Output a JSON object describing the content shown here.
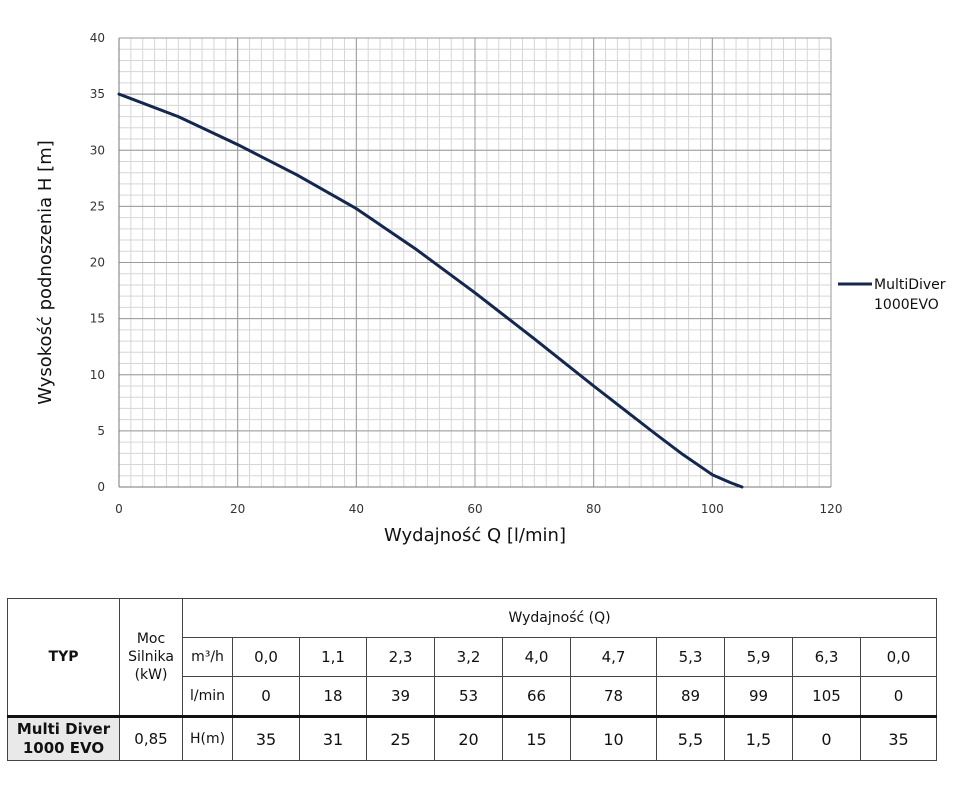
{
  "chart_data": {
    "type": "line",
    "xlabel": "Wydajność Q [l/min]",
    "ylabel": "Wysokość podnoszenia H [m]",
    "xlim": [
      0,
      120
    ],
    "ylim": [
      0,
      40
    ],
    "x_ticks": [
      0,
      20,
      40,
      60,
      80,
      100,
      120
    ],
    "y_ticks": [
      0,
      5,
      10,
      15,
      20,
      25,
      30,
      35,
      40
    ],
    "grid": true,
    "legend_position": "right",
    "series": [
      {
        "name": "MultiDiver 1000EVO",
        "color": "#14274e",
        "x": [
          0,
          10,
          20,
          30,
          40,
          50,
          60,
          70,
          80,
          90,
          95,
          100,
          103,
          105
        ],
        "y": [
          35,
          33,
          30.5,
          27.8,
          24.8,
          21.2,
          17.3,
          13.2,
          9.0,
          4.9,
          2.9,
          1.1,
          0.4,
          0
        ]
      }
    ]
  },
  "table": {
    "typ_header": "TYP",
    "moc_header": "Moc Silnika (kW)",
    "wydajnosc_header": "Wydajność (Q)",
    "unit_m3h": "m³/h",
    "unit_lmin": "l/min",
    "unit_h": "H(m)",
    "m3h_values": [
      "0,0",
      "1,1",
      "2,3",
      "3,2",
      "4,0",
      "4,7",
      "5,3",
      "5,9",
      "6,3",
      "0,0"
    ],
    "lmin_values": [
      "0",
      "18",
      "39",
      "53",
      "66",
      "78",
      "89",
      "99",
      "105",
      "0"
    ],
    "model_name": "Multi Diver 1000 EVO",
    "power": "0,85",
    "h_values": [
      "35",
      "31",
      "25",
      "20",
      "15",
      "10",
      "5,5",
      "1,5",
      "0",
      "35"
    ]
  }
}
